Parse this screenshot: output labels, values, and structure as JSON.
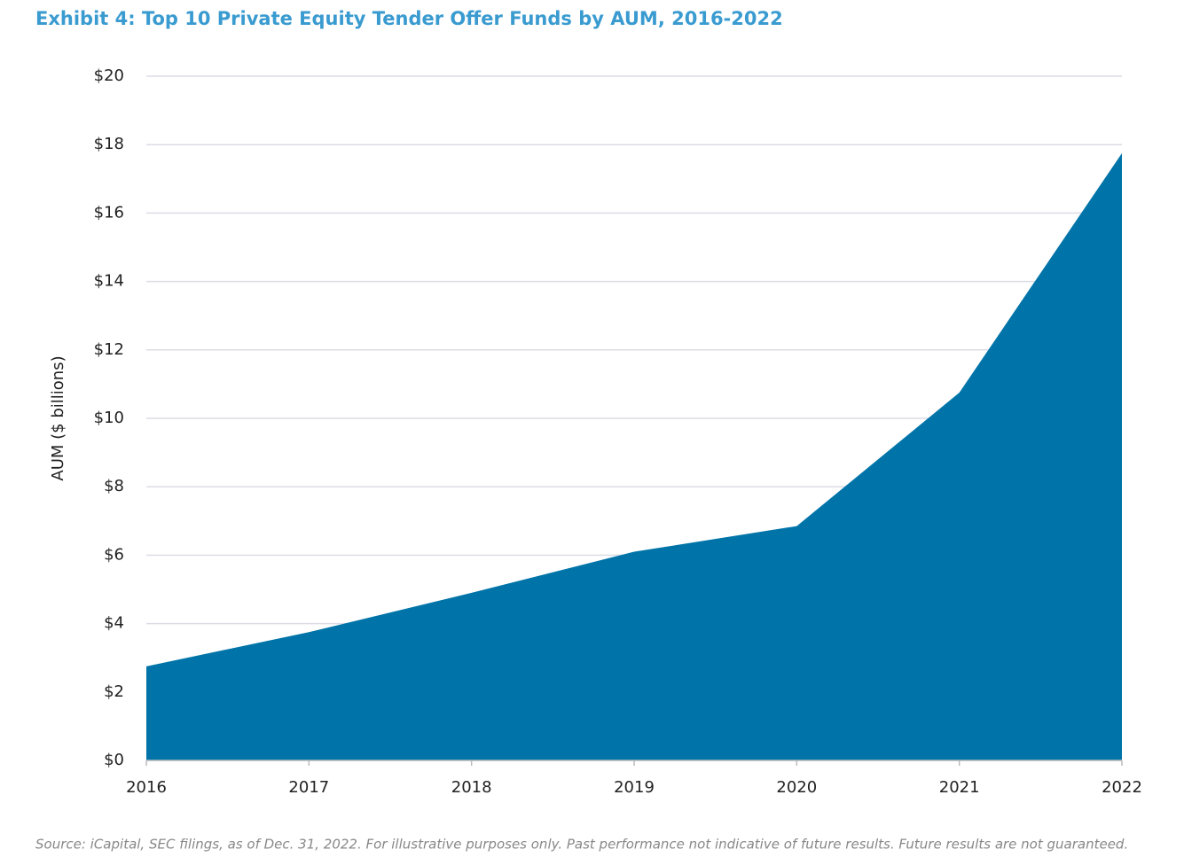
{
  "chart_data": {
    "type": "area",
    "title": "Exhibit 4: Top 10 Private Equity Tender Offer Funds by AUM, 2016-2022",
    "y_label": "AUM ($ billions)",
    "source": "Source: iCapital, SEC filings, as of Dec. 31, 2022. For illustrative purposes only. Past performance not indicative of future results. Future results are not guaranteed.",
    "categories": [
      "2016",
      "2017",
      "2018",
      "2019",
      "2020",
      "2021",
      "2022"
    ],
    "values": [
      2.75,
      3.75,
      4.9,
      6.1,
      6.85,
      10.75,
      17.75
    ],
    "color": "#0074a8",
    "ylim": [
      0,
      20
    ],
    "yticks": [
      {
        "value": 0,
        "label": "$0"
      },
      {
        "value": 2,
        "label": "$2"
      },
      {
        "value": 4,
        "label": "$4"
      },
      {
        "value": 6,
        "label": "$6"
      },
      {
        "value": 8,
        "label": "$8"
      },
      {
        "value": 10,
        "label": "$10"
      },
      {
        "value": 12,
        "label": "$12"
      },
      {
        "value": 14,
        "label": "$14"
      },
      {
        "value": 16,
        "label": "$16"
      },
      {
        "value": 18,
        "label": "$18"
      },
      {
        "value": 20,
        "label": "$20"
      }
    ],
    "grid": true
  }
}
